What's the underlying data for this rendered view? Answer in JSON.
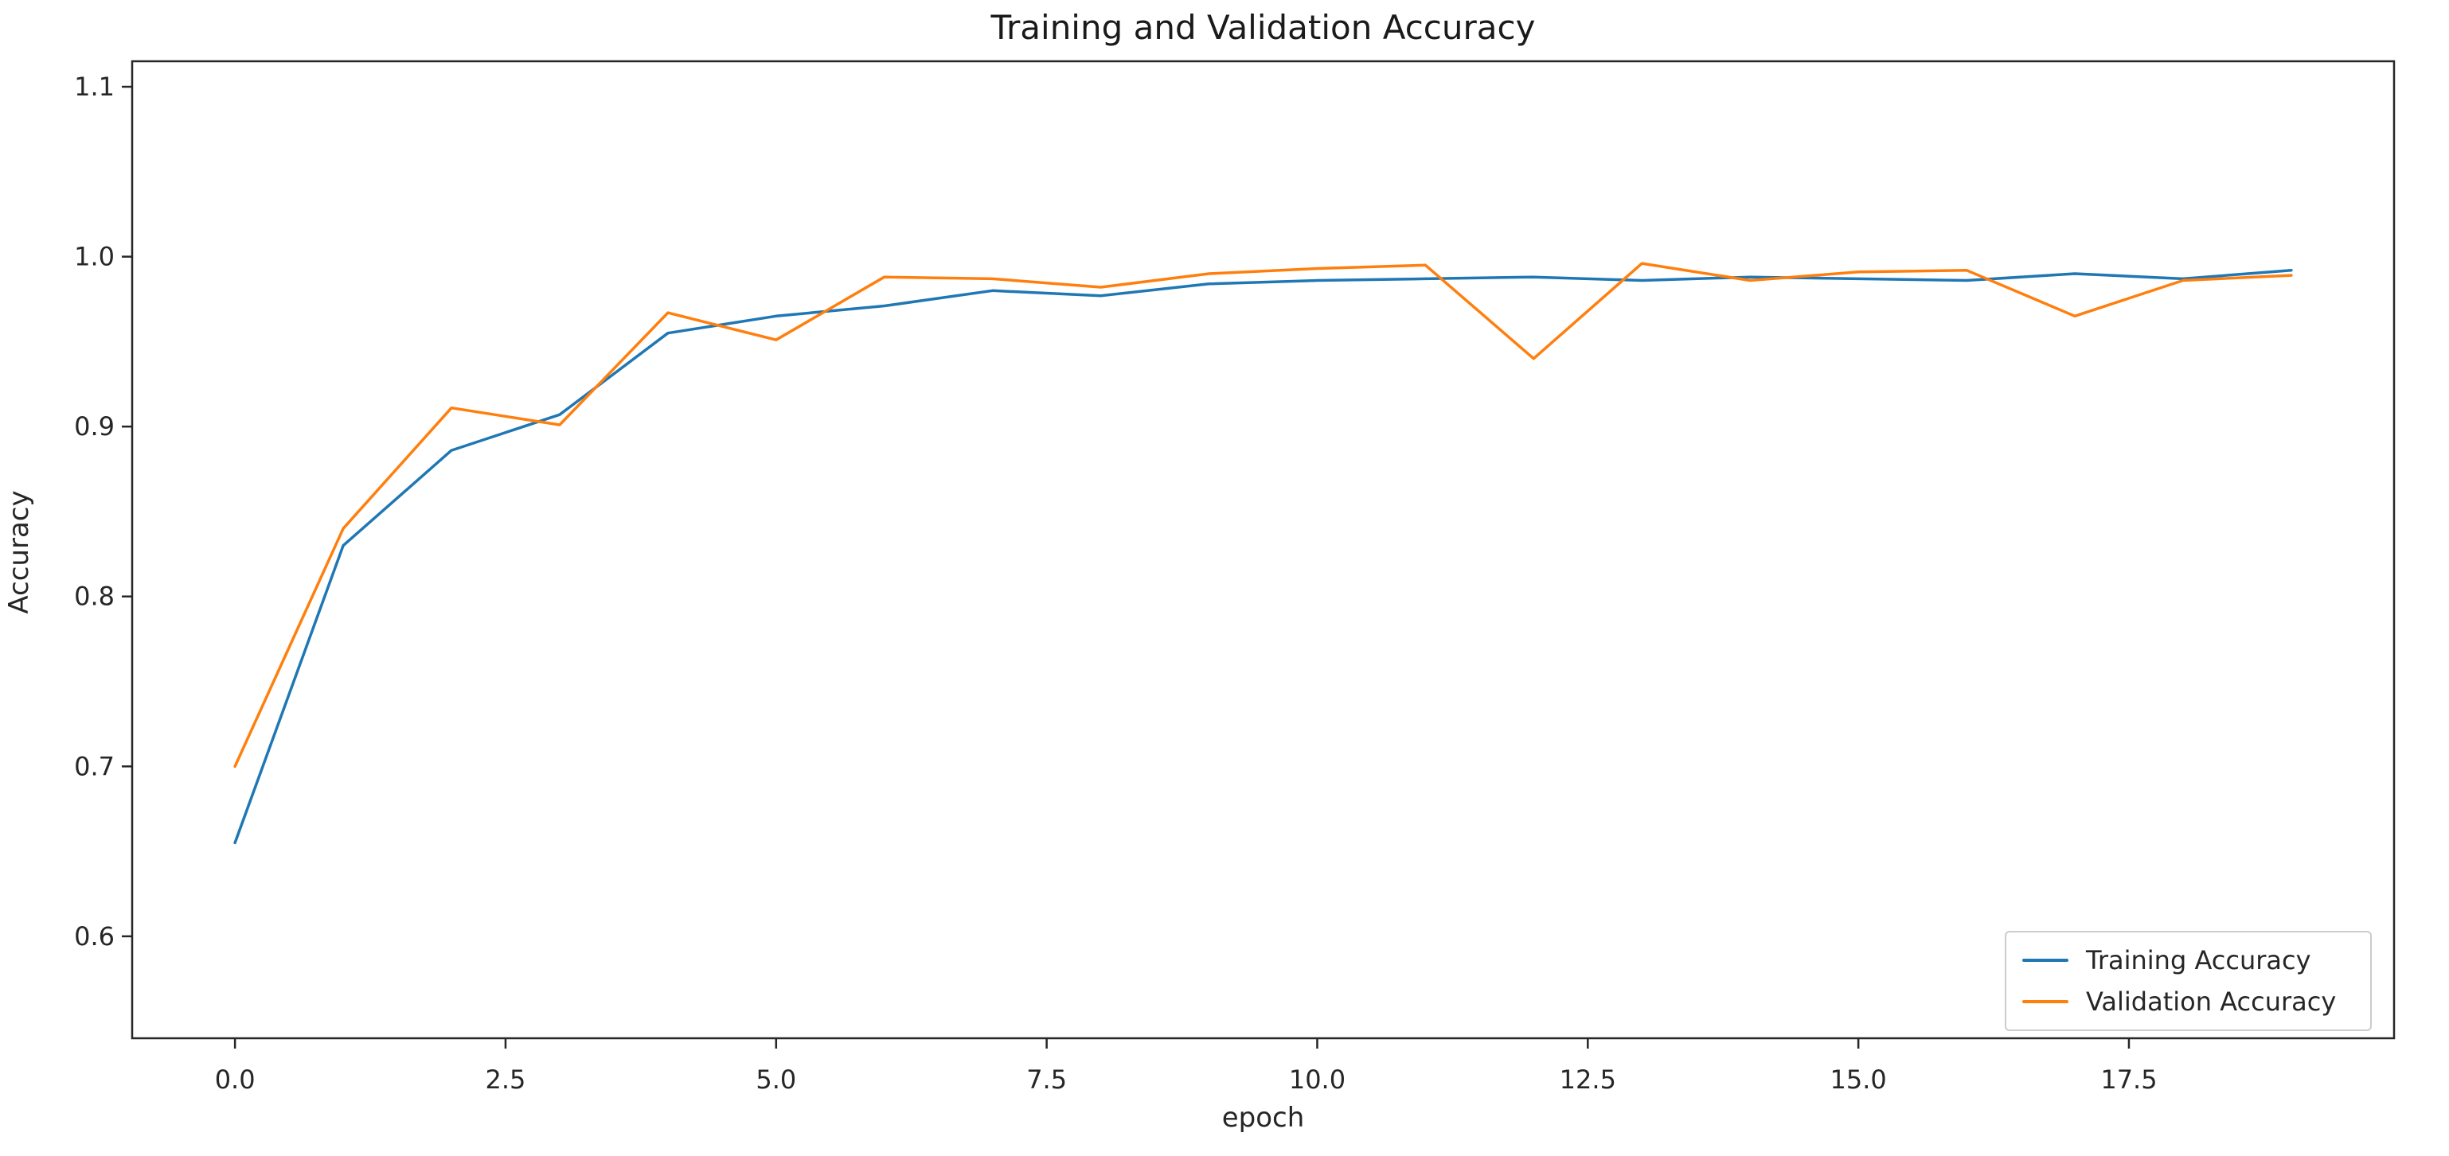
{
  "chart_data": {
    "type": "line",
    "title": "Training and Validation Accuracy",
    "xlabel": "epoch",
    "ylabel": "Accuracy",
    "x": [
      0,
      1,
      2,
      3,
      4,
      5,
      6,
      7,
      8,
      9,
      10,
      11,
      12,
      13,
      14,
      15,
      16,
      17,
      18,
      19
    ],
    "series": [
      {
        "name": "Training Accuracy",
        "color": "#1f77b4",
        "values": [
          0.655,
          0.83,
          0.886,
          0.907,
          0.955,
          0.965,
          0.971,
          0.98,
          0.977,
          0.984,
          0.986,
          0.987,
          0.988,
          0.986,
          0.988,
          0.987,
          0.986,
          0.99,
          0.987,
          0.992
        ]
      },
      {
        "name": "Validation Accuracy",
        "color": "#ff7f0e",
        "values": [
          0.7,
          0.84,
          0.911,
          0.901,
          0.967,
          0.951,
          0.988,
          0.987,
          0.982,
          0.99,
          0.993,
          0.995,
          0.94,
          0.996,
          0.986,
          0.991,
          0.992,
          0.965,
          0.986,
          0.989
        ]
      }
    ],
    "xlim": [
      -0.95,
      19.95
    ],
    "ylim": [
      0.54,
      1.115
    ],
    "xticks": {
      "values": [
        0.0,
        2.5,
        5.0,
        7.5,
        10.0,
        12.5,
        15.0,
        17.5
      ],
      "labels": [
        "0.0",
        "2.5",
        "5.0",
        "7.5",
        "10.0",
        "12.5",
        "15.0",
        "17.5"
      ]
    },
    "yticks": {
      "values": [
        0.6,
        0.7,
        0.8,
        0.9,
        1.0,
        1.1
      ],
      "labels": [
        "0.6",
        "0.7",
        "0.8",
        "0.9",
        "1.0",
        "1.1"
      ]
    },
    "grid": false,
    "legend_position": "lower right",
    "spine_color": "#262626",
    "tick_label_color": "#262626"
  }
}
